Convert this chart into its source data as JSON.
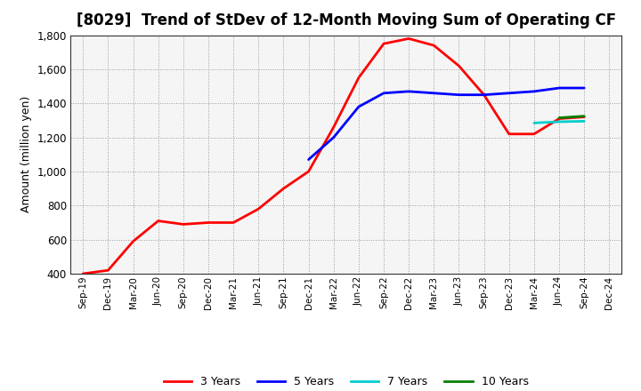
{
  "title": "[8029]  Trend of StDev of 12-Month Moving Sum of Operating CF",
  "ylabel": "Amount (million yen)",
  "ylim": [
    400,
    1800
  ],
  "yticks": [
    400,
    600,
    800,
    1000,
    1200,
    1400,
    1600,
    1800
  ],
  "background_color": "#ffffff",
  "plot_bg_color": "#f5f5f5",
  "grid_color": "#999999",
  "series": {
    "3y": {
      "color": "#ff0000",
      "label": "3 Years",
      "x": [
        "Sep-19",
        "Dec-19",
        "Mar-20",
        "Jun-20",
        "Sep-20",
        "Dec-20",
        "Mar-21",
        "Jun-21",
        "Sep-21",
        "Dec-21",
        "Mar-22",
        "Jun-22",
        "Sep-22",
        "Dec-22",
        "Mar-23",
        "Jun-23",
        "Sep-23",
        "Dec-23",
        "Mar-24",
        "Jun-24",
        "Sep-24"
      ],
      "y": [
        400,
        420,
        590,
        710,
        690,
        700,
        700,
        780,
        900,
        1000,
        1260,
        1550,
        1750,
        1780,
        1740,
        1620,
        1450,
        1220,
        1220,
        1310,
        1320
      ]
    },
    "5y": {
      "color": "#0000ff",
      "label": "5 Years",
      "x": [
        "Dec-21",
        "Mar-22",
        "Jun-22",
        "Sep-22",
        "Dec-22",
        "Mar-23",
        "Jun-23",
        "Sep-23",
        "Dec-23",
        "Mar-24",
        "Jun-24",
        "Sep-24"
      ],
      "y": [
        1070,
        1200,
        1380,
        1460,
        1470,
        1460,
        1450,
        1450,
        1460,
        1470,
        1490,
        1490
      ]
    },
    "7y": {
      "color": "#00cccc",
      "label": "7 Years",
      "x": [
        "Mar-24",
        "Jun-24",
        "Sep-24"
      ],
      "y": [
        1285,
        1292,
        1295
      ]
    },
    "10y": {
      "color": "#008000",
      "label": "10 Years",
      "x": [
        "Jun-24",
        "Sep-24"
      ],
      "y": [
        1315,
        1325
      ]
    }
  },
  "x_labels": [
    "Sep-19",
    "Dec-19",
    "Mar-20",
    "Jun-20",
    "Sep-20",
    "Dec-20",
    "Mar-21",
    "Jun-21",
    "Sep-21",
    "Dec-21",
    "Mar-22",
    "Jun-22",
    "Sep-22",
    "Dec-22",
    "Mar-23",
    "Jun-23",
    "Sep-23",
    "Dec-23",
    "Mar-24",
    "Jun-24",
    "Sep-24",
    "Dec-24"
  ],
  "title_fontsize": 12,
  "legend_colors": [
    "#ff0000",
    "#0000ff",
    "#00cccc",
    "#008000"
  ],
  "legend_labels": [
    "3 Years",
    "5 Years",
    "7 Years",
    "10 Years"
  ]
}
